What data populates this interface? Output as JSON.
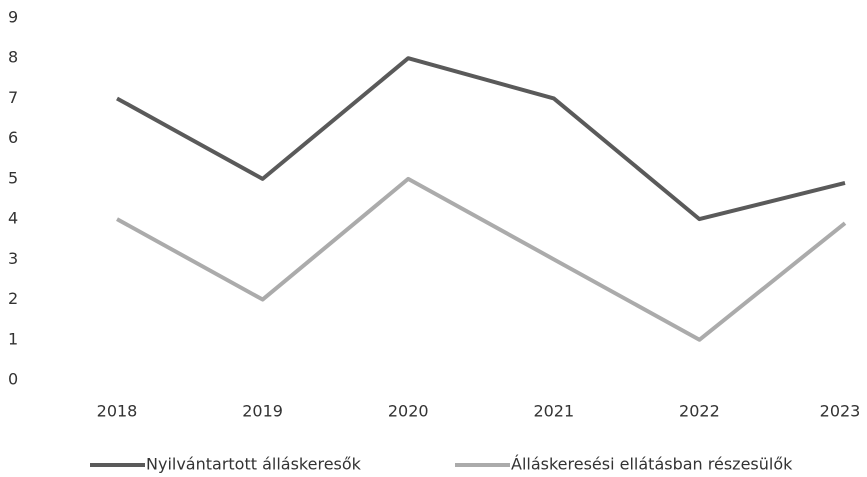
{
  "chart_data": {
    "type": "line",
    "categories": [
      "2018",
      "2019",
      "2020",
      "2021",
      "2022",
      "2023"
    ],
    "series": [
      {
        "name": "Nyilvántartott álláskeresők",
        "color": "#5a5a5a",
        "values": [
          7,
          5,
          8,
          7,
          4,
          4.9
        ]
      },
      {
        "name": "Álláskeresési ellátásban részesülők",
        "color": "#ababab",
        "values": [
          4,
          2,
          5,
          3,
          1,
          3.9
        ]
      }
    ],
    "ylim": [
      0,
      9
    ],
    "yticks": [
      0,
      1,
      2,
      3,
      4,
      5,
      6,
      7,
      8,
      9
    ]
  }
}
